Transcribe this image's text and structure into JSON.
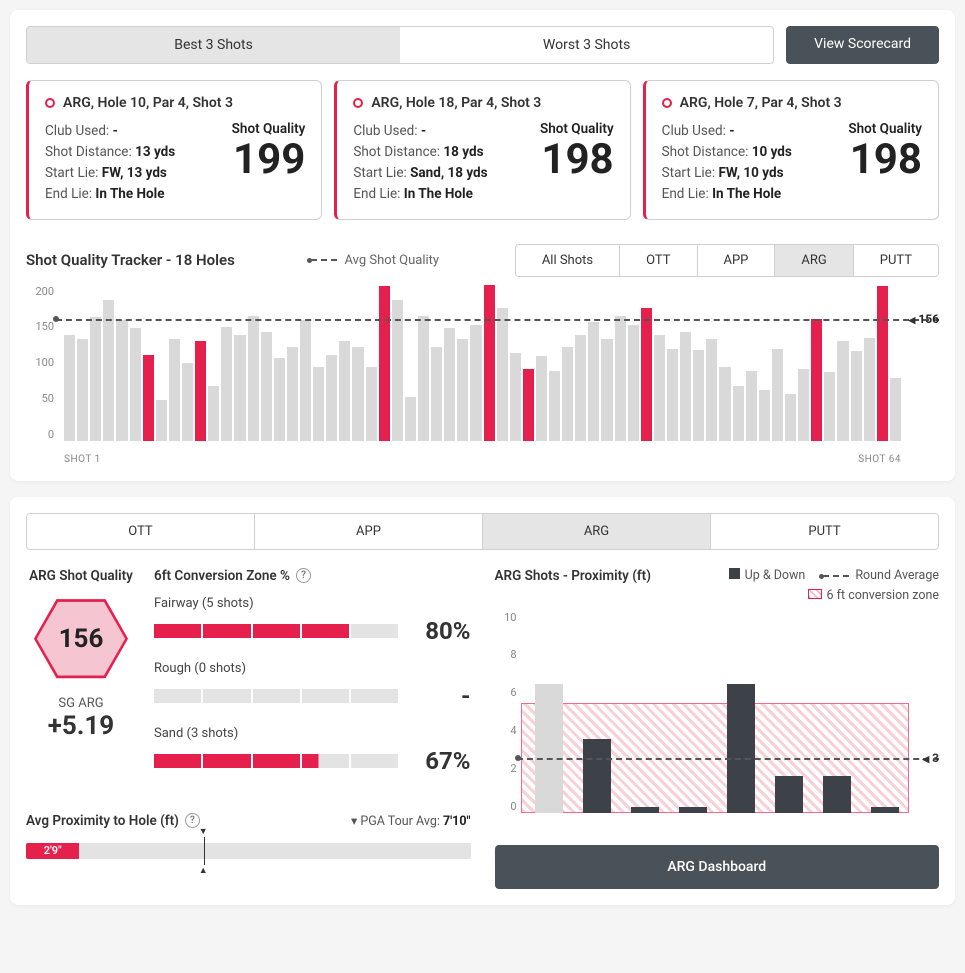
{
  "colors": {
    "accent": "#e6204c",
    "bar_gray": "#d9d9d9",
    "bar_dark": "#3d4248",
    "panel_dark": "#4a5259"
  },
  "top": {
    "seg": {
      "best": "Best 3 Shots",
      "worst": "Worst 3 Shots",
      "active": "best"
    },
    "view_scorecard": "View Scorecard"
  },
  "cards": [
    {
      "title": "ARG, Hole 10, Par 4, Shot 3",
      "club": "-",
      "distance": "13 yds",
      "start": "FW, 13 yds",
      "end": "In The Hole",
      "sq_label": "Shot Quality",
      "sq": "199"
    },
    {
      "title": "ARG, Hole 18, Par 4, Shot 3",
      "club": "-",
      "distance": "18 yds",
      "start": "Sand, 18 yds",
      "end": "In The Hole",
      "sq_label": "Shot Quality",
      "sq": "198"
    },
    {
      "title": "ARG, Hole 7, Par 4, Shot 3",
      "club": "-",
      "distance": "10 yds",
      "start": "FW, 10 yds",
      "end": "In The Hole",
      "sq_label": "Shot Quality",
      "sq": "198"
    }
  ],
  "labels": {
    "club": "Club Used:",
    "distance": "Shot Distance:",
    "start": "Start Lie:",
    "end": "End Lie:"
  },
  "tracker": {
    "title": "Shot Quality Tracker - 18 Holes",
    "avg_label": "Avg Shot Quality",
    "avg_value": "156",
    "filters": [
      "All Shots",
      "OTT",
      "APP",
      "ARG",
      "PUTT"
    ],
    "active_filter": "ARG",
    "ymax": 200,
    "ytick_step": 50,
    "x_first": "SHOT 1",
    "x_last": "SHOT 64",
    "bars": [
      {
        "v": 135,
        "hl": false
      },
      {
        "v": 130,
        "hl": false
      },
      {
        "v": 158,
        "hl": false
      },
      {
        "v": 180,
        "hl": false
      },
      {
        "v": 155,
        "hl": false
      },
      {
        "v": 145,
        "hl": false
      },
      {
        "v": 110,
        "hl": true
      },
      {
        "v": 52,
        "hl": false
      },
      {
        "v": 130,
        "hl": false
      },
      {
        "v": 100,
        "hl": false
      },
      {
        "v": 128,
        "hl": true
      },
      {
        "v": 70,
        "hl": false
      },
      {
        "v": 146,
        "hl": false
      },
      {
        "v": 135,
        "hl": false
      },
      {
        "v": 160,
        "hl": false
      },
      {
        "v": 140,
        "hl": false
      },
      {
        "v": 106,
        "hl": false
      },
      {
        "v": 120,
        "hl": false
      },
      {
        "v": 155,
        "hl": false
      },
      {
        "v": 95,
        "hl": false
      },
      {
        "v": 110,
        "hl": false
      },
      {
        "v": 128,
        "hl": false
      },
      {
        "v": 120,
        "hl": false
      },
      {
        "v": 95,
        "hl": false
      },
      {
        "v": 198,
        "hl": true
      },
      {
        "v": 180,
        "hl": false
      },
      {
        "v": 56,
        "hl": false
      },
      {
        "v": 160,
        "hl": false
      },
      {
        "v": 120,
        "hl": false
      },
      {
        "v": 145,
        "hl": false
      },
      {
        "v": 130,
        "hl": false
      },
      {
        "v": 148,
        "hl": false
      },
      {
        "v": 199,
        "hl": true
      },
      {
        "v": 170,
        "hl": false
      },
      {
        "v": 113,
        "hl": false
      },
      {
        "v": 92,
        "hl": true
      },
      {
        "v": 108,
        "hl": false
      },
      {
        "v": 90,
        "hl": false
      },
      {
        "v": 120,
        "hl": false
      },
      {
        "v": 135,
        "hl": false
      },
      {
        "v": 152,
        "hl": false
      },
      {
        "v": 130,
        "hl": false
      },
      {
        "v": 160,
        "hl": false
      },
      {
        "v": 148,
        "hl": false
      },
      {
        "v": 170,
        "hl": true
      },
      {
        "v": 135,
        "hl": false
      },
      {
        "v": 117,
        "hl": false
      },
      {
        "v": 140,
        "hl": false
      },
      {
        "v": 116,
        "hl": false
      },
      {
        "v": 130,
        "hl": false
      },
      {
        "v": 95,
        "hl": false
      },
      {
        "v": 70,
        "hl": false
      },
      {
        "v": 90,
        "hl": false
      },
      {
        "v": 65,
        "hl": false
      },
      {
        "v": 118,
        "hl": false
      },
      {
        "v": 60,
        "hl": false
      },
      {
        "v": 92,
        "hl": false
      },
      {
        "v": 156,
        "hl": true
      },
      {
        "v": 88,
        "hl": false
      },
      {
        "v": 128,
        "hl": false
      },
      {
        "v": 115,
        "hl": false
      },
      {
        "v": 132,
        "hl": false
      },
      {
        "v": 198,
        "hl": true
      },
      {
        "v": 80,
        "hl": false
      }
    ]
  },
  "lower": {
    "tabs": [
      "OTT",
      "APP",
      "ARG",
      "PUTT"
    ],
    "active_tab": "ARG",
    "quality_title": "ARG Shot Quality",
    "hex_value": "156",
    "sg_label": "SG ARG",
    "sg_value": "+5.19",
    "conv_title": "6ft Conversion Zone %",
    "conv": [
      {
        "label": "Fairway (5 shots)",
        "fill": 4,
        "total": 5,
        "pct": "80%"
      },
      {
        "label": "Rough (0 shots)",
        "fill": 0,
        "total": 5,
        "pct": "-"
      },
      {
        "label": "Sand (3 shots)",
        "fill": 3,
        "total": 5,
        "pct": "67%",
        "partial": 0.35
      }
    ],
    "prox_title": "Avg Proximity to Hole (ft)",
    "pga_label": "PGA Tour Avg:",
    "pga_value": "7'10\"",
    "prox_value": "2'9\"",
    "prox_fill_pct": 12,
    "prox_marker_pct": 40,
    "right_title": "ARG Shots - Proximity (ft)",
    "legend_updown": "Up & Down",
    "legend_roundavg": "Round Average",
    "legend_zone": "6 ft conversion zone",
    "prox_chart": {
      "ymax": 11,
      "yticks": [
        0,
        2,
        4,
        6,
        8,
        10
      ],
      "zone_top": 6,
      "avg": 3,
      "avg_label": "3",
      "bars": [
        {
          "v": 7,
          "dark": false
        },
        {
          "v": 4,
          "dark": true
        },
        {
          "v": 0.3,
          "dark": true
        },
        {
          "v": 0.3,
          "dark": true
        },
        {
          "v": 7,
          "dark": true
        },
        {
          "v": 2,
          "dark": true
        },
        {
          "v": 2,
          "dark": true
        },
        {
          "v": 0.3,
          "dark": true
        }
      ]
    },
    "dash_btn": "ARG Dashboard"
  }
}
